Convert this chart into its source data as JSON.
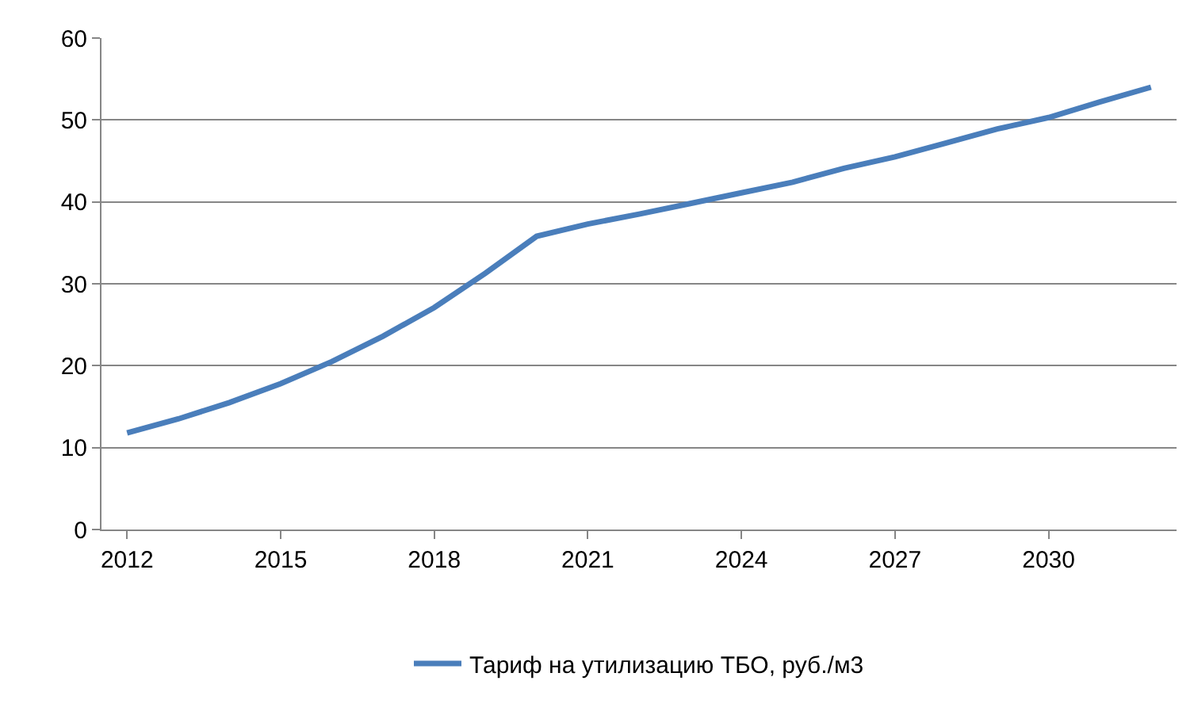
{
  "chart_data": {
    "type": "line",
    "categories": [
      "2012",
      null,
      null,
      "2015",
      null,
      null,
      "2018",
      null,
      null,
      "2021",
      null,
      null,
      "2024",
      null,
      null,
      "2027",
      null,
      null,
      "2030",
      null,
      null
    ],
    "series": [
      {
        "name": "Тариф на утилизацию ТБО, руб./м3",
        "color": "#4a7ebb",
        "values": [
          11.8,
          13.5,
          15.5,
          17.8,
          20.5,
          23.6,
          27.1,
          31.3,
          35.8,
          37.3,
          38.5,
          39.8,
          41.1,
          42.4,
          44.1,
          45.5,
          47.2,
          48.9,
          50.3,
          52.2,
          54.0
        ]
      }
    ],
    "ylim": [
      0,
      60
    ],
    "yticks": [
      0,
      10,
      20,
      30,
      40,
      50,
      60
    ],
    "grid": "y",
    "legend": "bottom",
    "marker": "none",
    "line_style": "solid"
  }
}
